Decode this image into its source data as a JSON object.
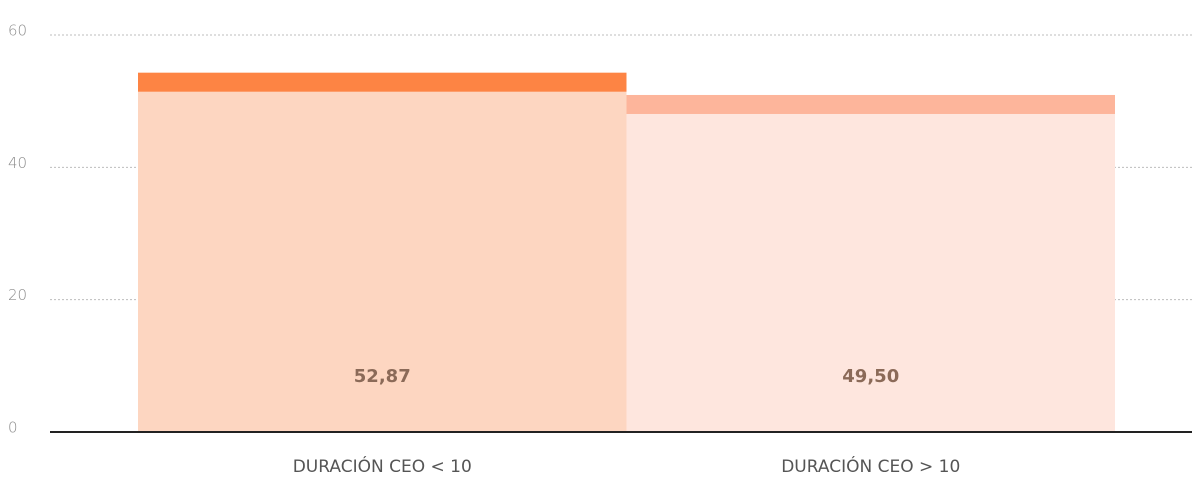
{
  "chart_data": {
    "type": "bar",
    "categories": [
      "DURACIÓN CEO < 10",
      "DURACIÓN CEO > 10"
    ],
    "values": [
      52.87,
      49.5
    ],
    "value_labels": [
      "52,87",
      "49,50"
    ],
    "colors": [
      "#fdd6c1",
      "#fee6de"
    ],
    "cap_colors": [
      "#fd8444",
      "#fdb59b"
    ],
    "ylim": [
      0,
      60
    ],
    "yticks": [
      0,
      20,
      40,
      60
    ],
    "grid": true
  }
}
